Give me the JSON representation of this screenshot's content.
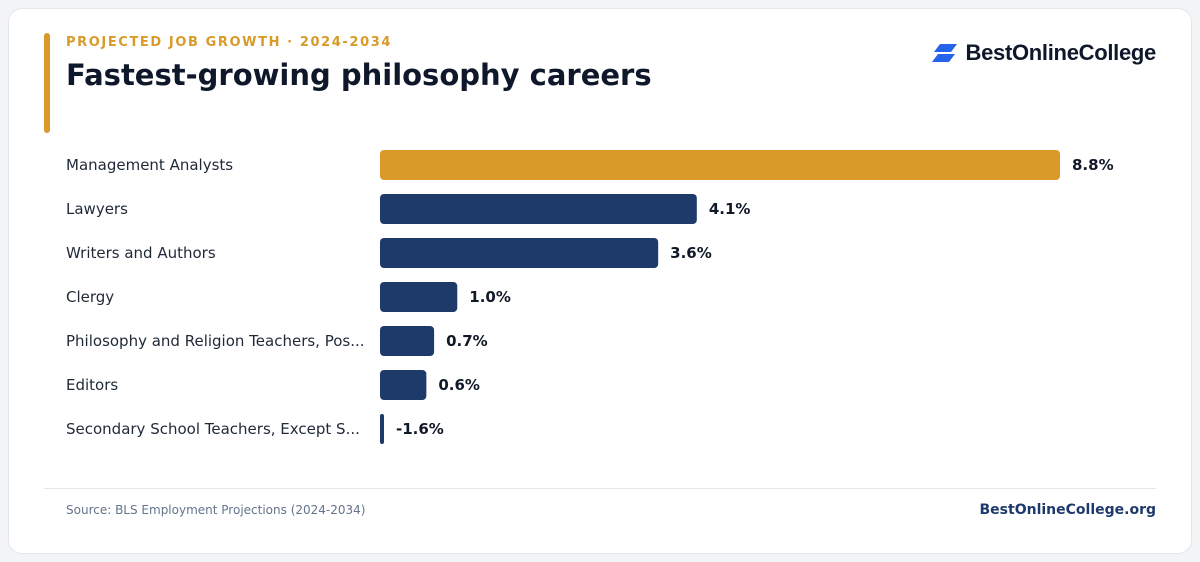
{
  "header": {
    "eyebrow": "PROJECTED JOB GROWTH · 2024-2034",
    "title": "Fastest-growing philosophy careers"
  },
  "brand": {
    "name": "BestOnlineCollege",
    "icon": "stacked-parallelogram-logo-icon"
  },
  "footer": {
    "source": "Source: BLS Employment Projections (2024-2034)",
    "site": "BestOnlineCollege.org"
  },
  "colors": {
    "highlight": "#d99a29",
    "bar": "#1e3a6b",
    "brand_blue": "#2563eb"
  },
  "chart_data": {
    "type": "bar",
    "orientation": "horizontal",
    "categories": [
      "Management Analysts",
      "Lawyers",
      "Writers and Authors",
      "Clergy",
      "Philosophy and Religion Teachers, Pos...",
      "Editors",
      "Secondary School Teachers, Except S..."
    ],
    "values": [
      8.8,
      4.1,
      3.6,
      1.0,
      0.7,
      0.6,
      -1.6
    ],
    "value_labels": [
      "8.8%",
      "4.1%",
      "3.6%",
      "1.0%",
      "0.7%",
      "0.6%",
      "-1.6%"
    ],
    "highlight_index": 0,
    "xlim": [
      0,
      8.8
    ],
    "grid": false,
    "legend": "none"
  }
}
